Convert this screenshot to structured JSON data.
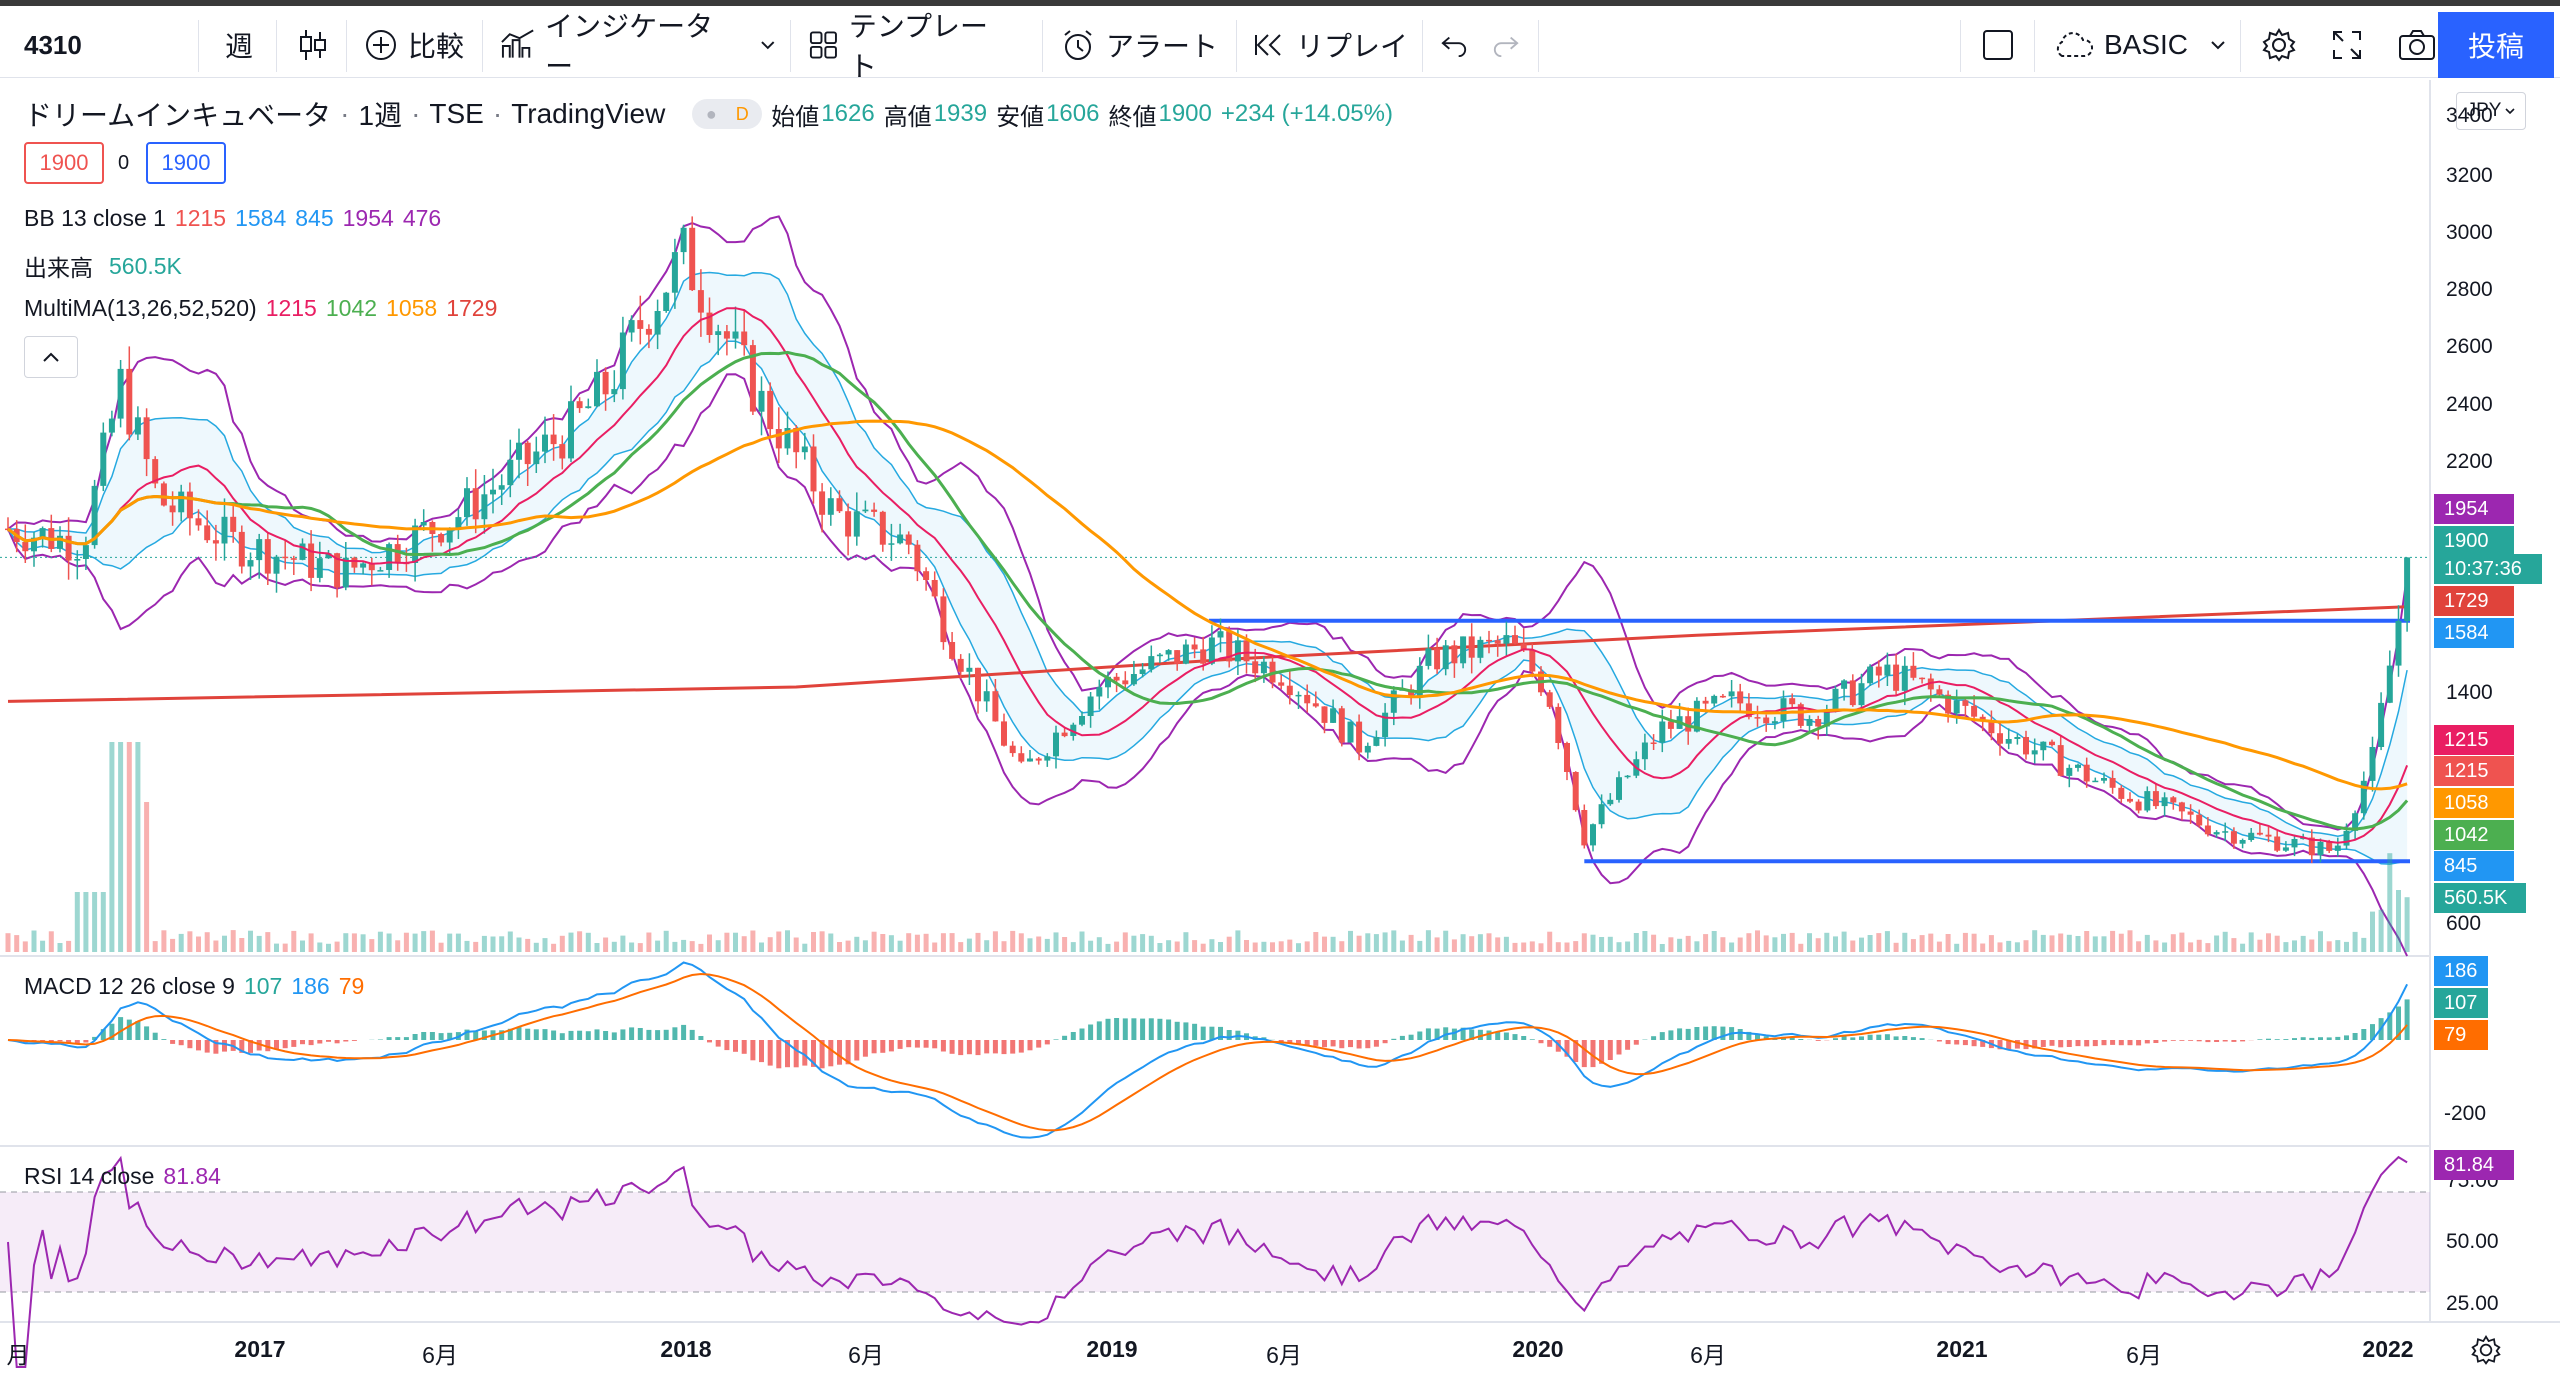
{
  "toolbar": {
    "symbol": "4310",
    "interval": "週",
    "compare": "比較",
    "indicators": "インジケーター",
    "templates": "テンプレート",
    "alert": "アラート",
    "replay": "リプレイ",
    "layout_name": "BASIC",
    "post": "投稿"
  },
  "legend": {
    "title": "ドリームインキュベータ",
    "interval": "1週",
    "exchange": "TSE",
    "source": "TradingView",
    "status_badge": "D",
    "ohlc": {
      "open_label": "始値",
      "open": "1626",
      "high_label": "高値",
      "high": "1939",
      "low_label": "安値",
      "low": "1606",
      "close_label": "終値",
      "close": "1900",
      "change": "+234 (+14.05%)"
    },
    "sell_price": "1900",
    "spread": "0",
    "buy_price": "1900",
    "bb": {
      "name": "BB 13 close 1",
      "basis": "1215",
      "upper_inner": "1584",
      "lower_inner": "845",
      "upper": "1954",
      "lower": "476"
    },
    "volume": {
      "name": "出来高",
      "value": "560.5K"
    },
    "multima": {
      "name": "MultiMA(13,26,52,520)",
      "ma13": "1215",
      "ma26": "1042",
      "ma52": "1058",
      "ma520": "1729"
    },
    "macd": {
      "name": "MACD 12 26 close 9",
      "hist": "107",
      "macd": "186",
      "signal": "79"
    },
    "rsi": {
      "name": "RSI 14 close",
      "value": "81.84"
    }
  },
  "currency": "JPY",
  "colors": {
    "up": "#26a69a",
    "down": "#ef5350",
    "bb": "#9c27b0",
    "bb_inner": "#26a9e0",
    "ma13": "#e91e63",
    "ma26": "#4caf50",
    "ma52": "#ff9800",
    "ma520": "#e0433b",
    "macd": "#2196f3",
    "signal": "#ff6d00",
    "rsi": "#9c27b0",
    "hline": "#2962ff"
  },
  "price_axis": [
    "3400",
    "3200",
    "3000",
    "2800",
    "2600",
    "2400",
    "2200",
    "1400",
    "600"
  ],
  "price_tags": [
    {
      "value": "1954",
      "color": "#9c27b0"
    },
    {
      "value": "1900",
      "color": "#26a69a"
    },
    {
      "value": "10:37:36",
      "color": "#26a69a"
    },
    {
      "value": "1729",
      "color": "#e0433b"
    },
    {
      "value": "1584",
      "color": "#2196f3"
    },
    {
      "value": "1215",
      "color": "#e91e63"
    },
    {
      "value": "1215",
      "color": "#ef5350"
    },
    {
      "value": "1058",
      "color": "#ff9800"
    },
    {
      "value": "1042",
      "color": "#4caf50"
    },
    {
      "value": "845",
      "color": "#2196f3"
    },
    {
      "value": "560.5K",
      "color": "#26a69a"
    }
  ],
  "macd_axis": [
    "-200"
  ],
  "macd_tags": [
    {
      "value": "186",
      "color": "#2196f3"
    },
    {
      "value": "107",
      "color": "#26a69a"
    },
    {
      "value": "79",
      "color": "#ff6d00"
    }
  ],
  "rsi_axis": [
    "75.00",
    "50.00",
    "25.00"
  ],
  "rsi_tag": {
    "value": "81.84",
    "color": "#9c27b0"
  },
  "time_axis": [
    {
      "label": "月",
      "year": false
    },
    {
      "label": "2017",
      "year": true
    },
    {
      "label": "6月",
      "year": false
    },
    {
      "label": "2018",
      "year": true
    },
    {
      "label": "6月",
      "year": false
    },
    {
      "label": "2019",
      "year": true
    },
    {
      "label": "6月",
      "year": false
    },
    {
      "label": "2020",
      "year": true
    },
    {
      "label": "6月",
      "year": false
    },
    {
      "label": "2021",
      "year": true
    },
    {
      "label": "6月",
      "year": false
    },
    {
      "label": "2022",
      "year": true
    }
  ],
  "chart_data": {
    "type": "candlestick",
    "title": "ドリームインキュベータ 1週 TSE",
    "x_range": [
      "2016",
      "2022-01"
    ],
    "y_range": [
      600,
      3400
    ],
    "close_path": [
      [
        "2016-09",
        2000
      ],
      [
        "2016-11",
        1950
      ],
      [
        "2016-12",
        2500
      ],
      [
        "2017-01",
        2100
      ],
      [
        "2017-03",
        1950
      ],
      [
        "2017-06",
        1850
      ],
      [
        "2017-09",
        2050
      ],
      [
        "2017-12",
        2350
      ],
      [
        "2018-01",
        2500
      ],
      [
        "2018-02",
        2750
      ],
      [
        "2018-03",
        2950
      ],
      [
        "2018-04",
        2700
      ],
      [
        "2018-05",
        2450
      ],
      [
        "2018-07",
        2050
      ],
      [
        "2018-09",
        1950
      ],
      [
        "2018-10",
        1650
      ],
      [
        "2018-12",
        1150
      ],
      [
        "2019-02",
        1450
      ],
      [
        "2019-05",
        1600
      ],
      [
        "2019-07",
        1500
      ],
      [
        "2019-09",
        1250
      ],
      [
        "2019-11",
        1550
      ],
      [
        "2020-01",
        1600
      ],
      [
        "2020-02",
        1450
      ],
      [
        "2020-03",
        930
      ],
      [
        "2020-05",
        1300
      ],
      [
        "2020-07",
        1400
      ],
      [
        "2020-09",
        1350
      ],
      [
        "2020-11",
        1500
      ],
      [
        "2020-12",
        1450
      ],
      [
        "2021-02",
        1300
      ],
      [
        "2021-05",
        1100
      ],
      [
        "2021-08",
        950
      ],
      [
        "2021-11",
        880
      ],
      [
        "2021-12",
        1200
      ],
      [
        "2022-01",
        1900
      ]
    ],
    "ma520_path": [
      [
        "2016-09",
        1400
      ],
      [
        "2018-06",
        1450
      ],
      [
        "2019-06",
        1550
      ],
      [
        "2020-06",
        1630
      ],
      [
        "2022-01",
        1729
      ]
    ],
    "horizontal_lines": [
      1680,
      845
    ],
    "macd_hist_max": 186,
    "macd_axis_min": -200,
    "rsi_bounds": [
      30,
      70
    ],
    "rsi_last": 81.84
  }
}
